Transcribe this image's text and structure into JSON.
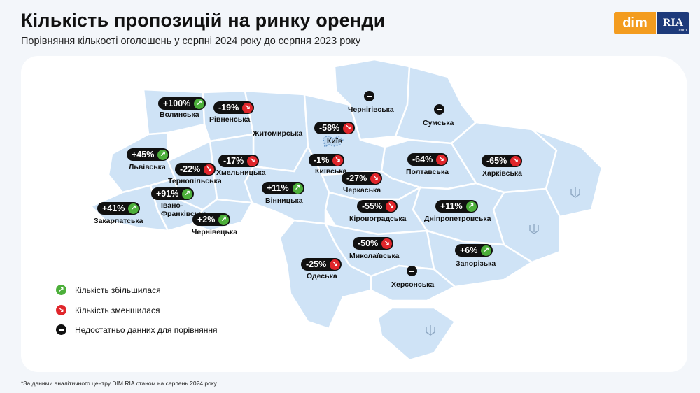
{
  "header": {
    "title": "Кількість пропозицій на ринку оренди",
    "subtitle": "Порівняння кількості оголошень у серпні 2024 року до серпня 2023 року",
    "logo_dim": "dim",
    "logo_ria": "RIA",
    "logo_ria_sub": ".com"
  },
  "colors": {
    "map_fill": "#cfe3f6",
    "increase": "#4caf3a",
    "decrease": "#e0262b",
    "no_data": "#111111",
    "brand_orange": "#f39c1f",
    "brand_blue": "#1d3a7a"
  },
  "regions": [
    {
      "id": "volynska",
      "name": "Волинська",
      "change": "+100%",
      "trend": "up"
    },
    {
      "id": "rivnenska",
      "name": "Рівненська",
      "change": "-19%",
      "trend": "down"
    },
    {
      "id": "zhytomyrska",
      "name": "Житомирська",
      "change": "",
      "trend": "none"
    },
    {
      "id": "chernihivska",
      "name": "Чернігівська",
      "change": "",
      "trend": "nodata"
    },
    {
      "id": "sumska",
      "name": "Сумська",
      "change": "",
      "trend": "nodata"
    },
    {
      "id": "kyiv",
      "name": "Київ",
      "change": "-58%",
      "trend": "down"
    },
    {
      "id": "lvivska",
      "name": "Львівська",
      "change": "+45%",
      "trend": "up"
    },
    {
      "id": "khmelnytska",
      "name": "Хмельницька",
      "change": "-17%",
      "trend": "down"
    },
    {
      "id": "ternopilska",
      "name": "Тернопільська",
      "change": "-22%",
      "trend": "down"
    },
    {
      "id": "kyivska",
      "name": "Київська",
      "change": "-1%",
      "trend": "down"
    },
    {
      "id": "poltavska",
      "name": "Полтавська",
      "change": "-64%",
      "trend": "down"
    },
    {
      "id": "kharkivska",
      "name": "Харківська",
      "change": "-65%",
      "trend": "down"
    },
    {
      "id": "cherkaska",
      "name": "Черкаська",
      "change": "-27%",
      "trend": "down"
    },
    {
      "id": "vinnytska",
      "name": "Вінницька",
      "change": "+11%",
      "trend": "up"
    },
    {
      "id": "ivano_frankivska",
      "name": "Івано-\nФранківська",
      "change": "+91%",
      "trend": "up"
    },
    {
      "id": "zakarpatska",
      "name": "Закарпатська",
      "change": "+41%",
      "trend": "up"
    },
    {
      "id": "kirovohradska",
      "name": "Кіровоградська",
      "change": "-55%",
      "trend": "down"
    },
    {
      "id": "dnipropetrovska",
      "name": "Дніпропетровська",
      "change": "+11%",
      "trend": "up"
    },
    {
      "id": "chernivetska",
      "name": "Чернівецька",
      "change": "+2%",
      "trend": "up"
    },
    {
      "id": "mykolaivska",
      "name": "Миколаївська",
      "change": "-50%",
      "trend": "down"
    },
    {
      "id": "zaporizka",
      "name": "Запорізька",
      "change": "+6%",
      "trend": "up"
    },
    {
      "id": "odeska",
      "name": "Одеська",
      "change": "-25%",
      "trend": "down"
    },
    {
      "id": "khersonska",
      "name": "Херсонська",
      "change": "",
      "trend": "nodata"
    }
  ],
  "legend": [
    {
      "icon": "arrow-up-icon",
      "label": "Кількість збільшилася",
      "trend": "up"
    },
    {
      "icon": "arrow-down-icon",
      "label": "Кількість зменшилася",
      "trend": "down"
    },
    {
      "icon": "minus-icon",
      "label": "Недостатньо данних для порівняння",
      "trend": "nodata"
    }
  ],
  "footnote": "*За даними аналітичного центру DIM.RIA станом на серпень 2024 року"
}
